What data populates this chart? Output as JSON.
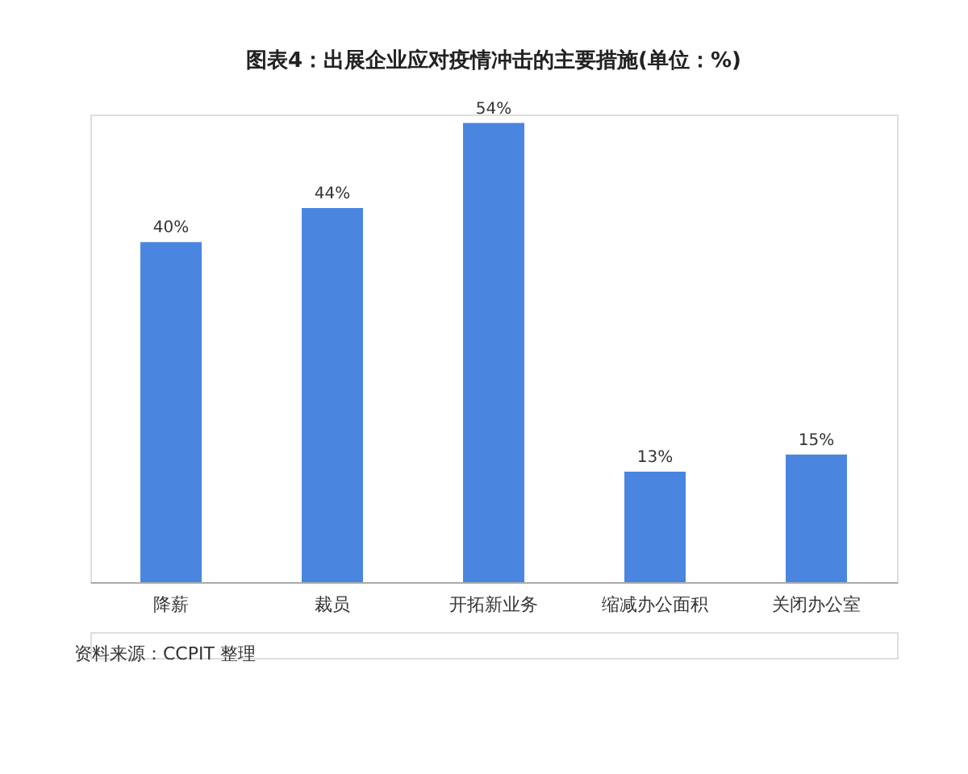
{
  "chart_data": {
    "type": "bar",
    "title": "图表4：出展企业应对疫情冲击的主要措施(单位：%)",
    "categories": [
      "降薪",
      "裁员",
      "开拓新业务",
      "缩减办公面积",
      "关闭办公室"
    ],
    "values": [
      40,
      44,
      54,
      13,
      15
    ],
    "value_labels": [
      "40%",
      "44%",
      "54%",
      "13%",
      "15%"
    ],
    "color": "#4a86e0",
    "annotations": [
      "资料来源：CCPIT 整理"
    ]
  }
}
